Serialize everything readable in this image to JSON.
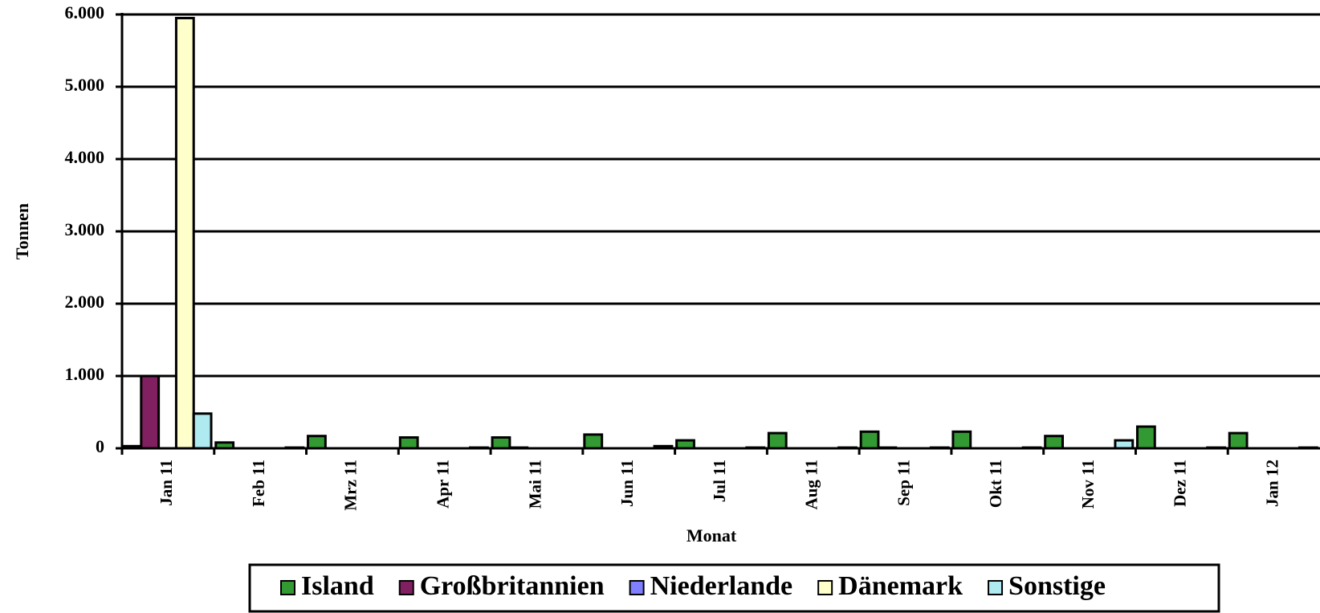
{
  "chart_data": {
    "type": "bar",
    "x_label": "Monat",
    "y_label": "Tonnen",
    "categories": [
      "Jan 11",
      "Feb 11",
      "Mrz 11",
      "Apr 11",
      "Mai 11",
      "Jun 11",
      "Jul 11",
      "Aug 11",
      "Sep 11",
      "Okt 11",
      "Nov 11",
      "Dez 11",
      "Jan 12"
    ],
    "series": [
      {
        "name": "Island",
        "color": "#339933",
        "values": [
          30,
          80,
          170,
          150,
          150,
          190,
          110,
          210,
          230,
          230,
          170,
          300,
          210
        ]
      },
      {
        "name": "Großbritannien",
        "color": "#802060",
        "values": [
          1000,
          0,
          0,
          0,
          10,
          0,
          0,
          0,
          10,
          0,
          0,
          0,
          0
        ]
      },
      {
        "name": "Niederlande",
        "color": "#8080ff",
        "values": [
          0,
          0,
          0,
          0,
          0,
          0,
          0,
          0,
          0,
          0,
          0,
          0,
          0
        ]
      },
      {
        "name": "Dänemark",
        "color": "#ffffcc",
        "values": [
          5950,
          0,
          0,
          0,
          0,
          0,
          0,
          0,
          0,
          0,
          0,
          0,
          0
        ]
      },
      {
        "name": "Sonstige",
        "color": "#aeeaf0",
        "values": [
          480,
          10,
          0,
          10,
          0,
          30,
          10,
          10,
          10,
          10,
          110,
          10,
          10
        ]
      }
    ],
    "ylim": [
      0,
      6000
    ],
    "yticks": [
      0,
      {
        "value": 1000,
        "label": "1.000"
      },
      {
        "value": 2000,
        "label": "2.000"
      },
      {
        "value": 3000,
        "label": "3.000"
      },
      {
        "value": 4000,
        "label": "4.000"
      },
      {
        "value": 5000,
        "label": "5.000"
      },
      {
        "value": 6000,
        "label": "6.000"
      }
    ],
    "grid": true,
    "legend": "bottom"
  }
}
